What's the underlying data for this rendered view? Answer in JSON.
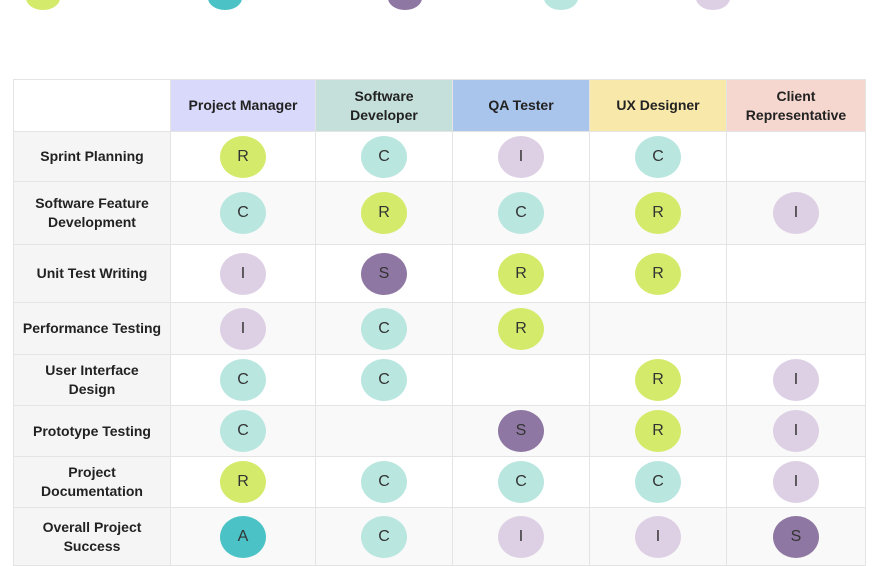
{
  "legend": [
    {
      "code": "R",
      "color": "#d4ea6b"
    },
    {
      "code": "A",
      "color": "#4bc3c6"
    },
    {
      "code": "S",
      "color": "#8e77a2"
    },
    {
      "code": "C",
      "color": "#b9e6df"
    },
    {
      "code": "I",
      "color": "#ddd0e4"
    }
  ],
  "colors": {
    "R": "#d4ea6b",
    "A": "#4bc3c6",
    "S": "#8e77a2",
    "C": "#b9e6df",
    "I": "#ddd0e4"
  },
  "columns": [
    {
      "label": "Project Manager",
      "color": "#d9d9fb"
    },
    {
      "label": "Software\nDeveloper",
      "color": "#c5e0da"
    },
    {
      "label": "QA Tester",
      "color": "#a9c5ec"
    },
    {
      "label": "UX Designer",
      "color": "#f8e8aa"
    },
    {
      "label": "Client\nRepresentative",
      "color": "#f5d7cf"
    }
  ],
  "rows": [
    {
      "task": "Sprint Planning",
      "cells": [
        "R",
        "C",
        "I",
        "C",
        ""
      ]
    },
    {
      "task": "Software Feature\nDevelopment",
      "cells": [
        "C",
        "R",
        "C",
        "R",
        "I"
      ]
    },
    {
      "task": "Unit Test Writing",
      "cells": [
        "I",
        "S",
        "R",
        "R",
        ""
      ]
    },
    {
      "task": "Performance Testing",
      "cells": [
        "I",
        "C",
        "R",
        "",
        ""
      ]
    },
    {
      "task": "User Interface\nDesign",
      "cells": [
        "C",
        "C",
        "",
        "R",
        "I"
      ]
    },
    {
      "task": "Prototype Testing",
      "cells": [
        "C",
        "",
        "S",
        "R",
        "I"
      ]
    },
    {
      "task": "Project\nDocumentation",
      "cells": [
        "R",
        "C",
        "C",
        "C",
        "I"
      ]
    },
    {
      "task": "Overall Project\nSuccess",
      "cells": [
        "A",
        "C",
        "I",
        "I",
        "S"
      ]
    }
  ]
}
